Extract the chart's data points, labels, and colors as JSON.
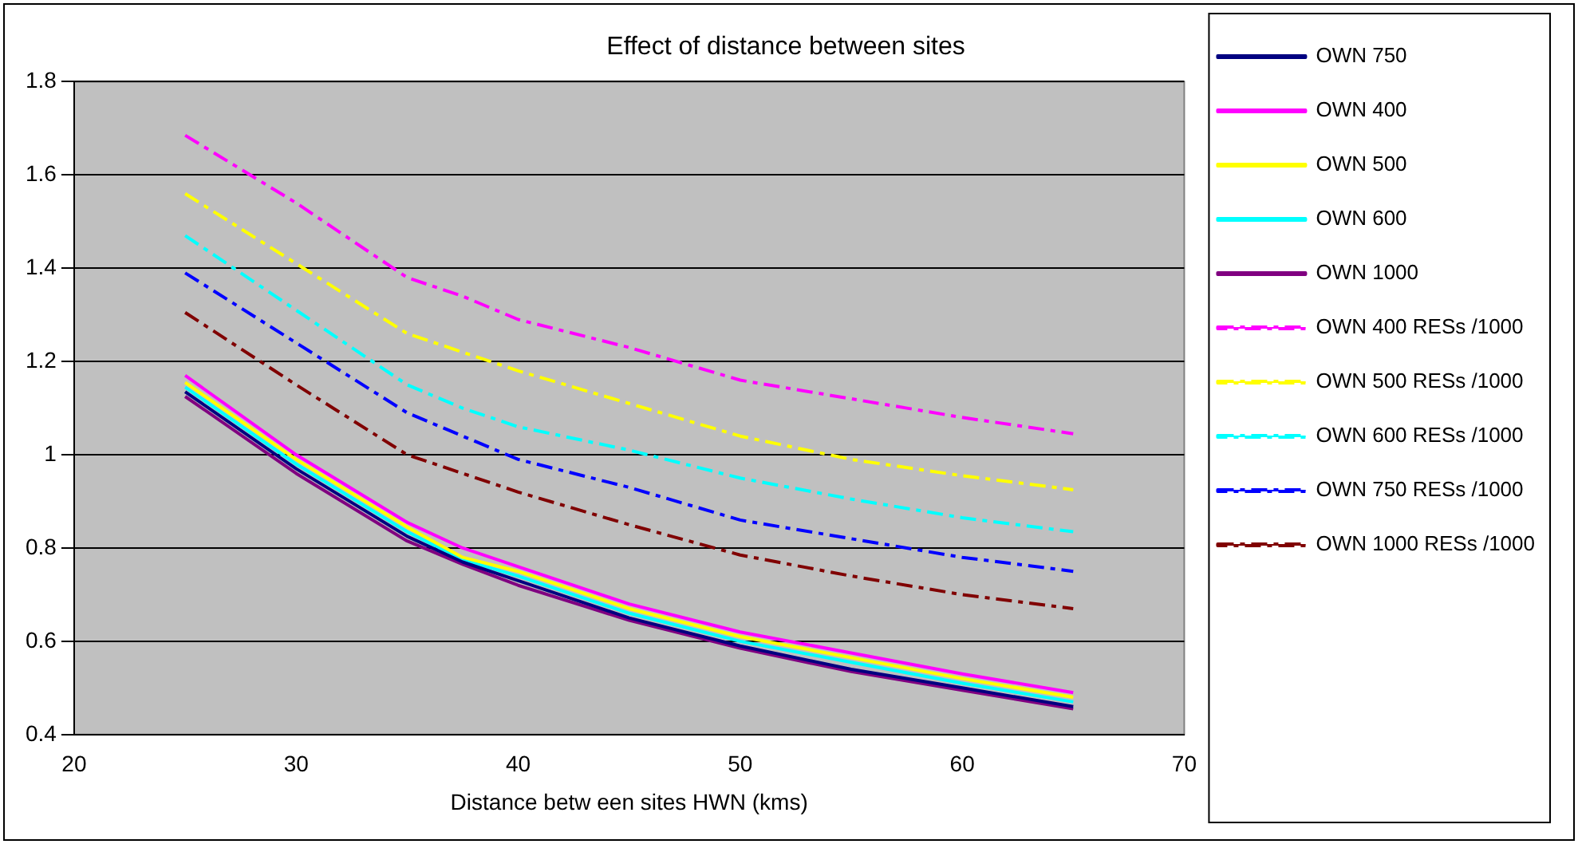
{
  "chart_data": {
    "type": "line",
    "title": "Effect of distance between sites",
    "xlabel": "Distance betw een sites HWN (kms)",
    "x": [
      25,
      30,
      35,
      37.5,
      40,
      45,
      50,
      55,
      60,
      65
    ],
    "xlim": [
      20,
      70
    ],
    "xticks": [
      20,
      30,
      40,
      50,
      60,
      70
    ],
    "ylim": [
      0.4,
      1.8
    ],
    "yticks": [
      0.4,
      0.6,
      0.8,
      1,
      1.2,
      1.4,
      1.6,
      1.8
    ],
    "grid": "y",
    "legend": "right",
    "marker": "none",
    "series": [
      {
        "name": "OWN 750",
        "color": "#000080",
        "line_style": "solid",
        "values": [
          1.135,
          0.97,
          0.825,
          0.77,
          0.73,
          0.65,
          0.59,
          0.54,
          0.5,
          0.46
        ]
      },
      {
        "name": "OWN 400",
        "color": "#ff00ff",
        "line_style": "solid",
        "values": [
          1.17,
          1.0,
          0.855,
          0.8,
          0.76,
          0.68,
          0.62,
          0.575,
          0.53,
          0.49
        ]
      },
      {
        "name": "OWN 500",
        "color": "#ffff00",
        "line_style": "solid",
        "values": [
          1.155,
          0.99,
          0.845,
          0.78,
          0.75,
          0.67,
          0.61,
          0.565,
          0.52,
          0.48
        ]
      },
      {
        "name": "OWN 600",
        "color": "#00ffff",
        "line_style": "solid",
        "values": [
          1.145,
          0.98,
          0.835,
          0.775,
          0.74,
          0.66,
          0.6,
          0.555,
          0.51,
          0.47
        ]
      },
      {
        "name": "OWN 1000",
        "color": "#800080",
        "line_style": "solid",
        "values": [
          1.125,
          0.96,
          0.815,
          0.765,
          0.72,
          0.645,
          0.585,
          0.535,
          0.495,
          0.455
        ]
      },
      {
        "name": "OWN 400 RESs /1000",
        "color": "#ff00ff",
        "line_style": "dashed",
        "values": [
          1.685,
          1.54,
          1.38,
          1.34,
          1.29,
          1.23,
          1.16,
          1.12,
          1.08,
          1.045
        ]
      },
      {
        "name": "OWN 500 RESs /1000",
        "color": "#ffff00",
        "line_style": "dashed",
        "values": [
          1.56,
          1.41,
          1.26,
          1.22,
          1.18,
          1.11,
          1.04,
          0.99,
          0.955,
          0.925
        ]
      },
      {
        "name": "OWN 600 RESs /1000",
        "color": "#00ffff",
        "line_style": "dashed",
        "values": [
          1.47,
          1.31,
          1.15,
          1.1,
          1.06,
          1.01,
          0.95,
          0.905,
          0.865,
          0.835
        ]
      },
      {
        "name": "OWN 750 RESs /1000",
        "color": "#0000ff",
        "line_style": "dashed",
        "values": [
          1.39,
          1.24,
          1.09,
          1.04,
          0.99,
          0.93,
          0.86,
          0.82,
          0.78,
          0.75
        ]
      },
      {
        "name": "OWN 1000 RESs /1000",
        "color": "#800000",
        "line_style": "dashed",
        "values": [
          1.305,
          1.15,
          1.0,
          0.96,
          0.92,
          0.85,
          0.785,
          0.74,
          0.7,
          0.67
        ]
      }
    ]
  }
}
